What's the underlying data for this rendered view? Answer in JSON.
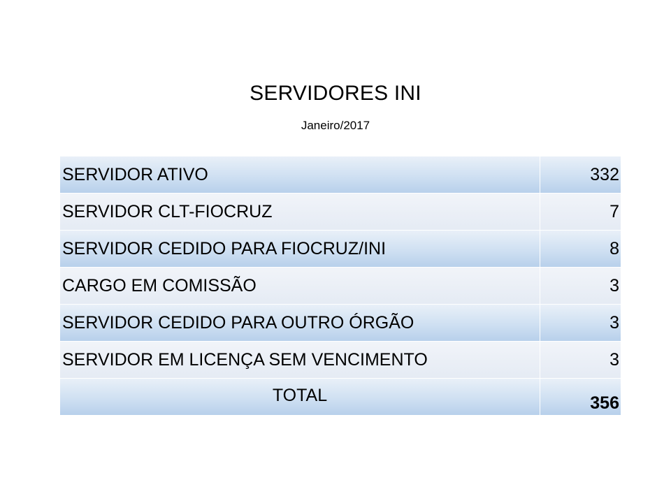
{
  "title": "SERVIDORES INI",
  "subtitle": "Janeiro/2017",
  "rows": [
    {
      "label": "SERVIDOR ATIVO",
      "value": "332"
    },
    {
      "label": "SERVIDOR CLT-FIOCRUZ",
      "value": "7"
    },
    {
      "label": "SERVIDOR CEDIDO PARA FIOCRUZ/INI",
      "value": "8"
    },
    {
      "label": "CARGO EM COMISSÃO",
      "value": "3"
    },
    {
      "label": "SERVIDOR CEDIDO PARA OUTRO ÓRGÃO",
      "value": "3"
    },
    {
      "label": "SERVIDOR EM LICENÇA SEM VENCIMENTO",
      "value": "3"
    }
  ],
  "total": {
    "label": "TOTAL",
    "value": "356"
  },
  "colors": {
    "band_dark_top": "#e9f0f8",
    "band_dark_bottom": "#b8d0eb",
    "band_light_top": "#f1f4f9",
    "band_light_bottom": "#e5ebf4"
  }
}
